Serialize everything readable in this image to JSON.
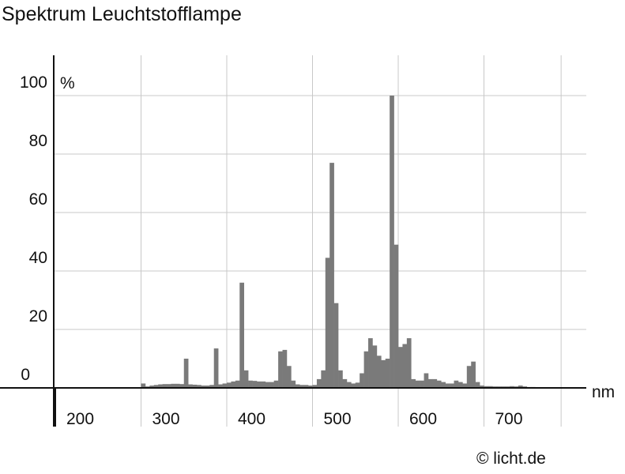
{
  "chart_data": {
    "type": "bar",
    "title": "Spektrum Leuchtstofflampe",
    "xlabel": "nm",
    "ylabel": "%",
    "xlim": [
      200,
      790
    ],
    "ylim": [
      0,
      100
    ],
    "x_ticks": [
      "200",
      "300",
      "400",
      "500",
      "600",
      "700"
    ],
    "y_ticks": [
      "0",
      "20",
      "40",
      "60",
      "80",
      "100"
    ],
    "bin_width_nm": 5,
    "grid": true,
    "series": [
      {
        "x": [
          300,
          305,
          310,
          315,
          320,
          325,
          330,
          335,
          340,
          345,
          350,
          355,
          360,
          365,
          370,
          375,
          380,
          385,
          390,
          395,
          400,
          405,
          410,
          415,
          420,
          425,
          430,
          435,
          440,
          445,
          450,
          455,
          460,
          465,
          470,
          475,
          480,
          485,
          490,
          495,
          500,
          505,
          510,
          515,
          520,
          525,
          530,
          535,
          540,
          545,
          550,
          555,
          560,
          565,
          570,
          575,
          580,
          585,
          590,
          595,
          600,
          605,
          610,
          615,
          620,
          625,
          630,
          635,
          640,
          645,
          650,
          655,
          660,
          665,
          670,
          675,
          680,
          685,
          690,
          695,
          700,
          705,
          710,
          715,
          720,
          725,
          730,
          735,
          740,
          745,
          750,
          755
        ],
        "values": [
          1.5,
          0.5,
          0.8,
          1.0,
          1.2,
          1.3,
          1.3,
          1.4,
          1.4,
          1.3,
          10.0,
          1.2,
          1.1,
          1.0,
          0.8,
          0.8,
          1.0,
          13.5,
          1.2,
          1.5,
          1.8,
          2.2,
          2.5,
          36.0,
          6.0,
          2.5,
          2.4,
          2.2,
          2.2,
          2.0,
          2.0,
          2.5,
          12.5,
          13.0,
          7.5,
          2.5,
          1.2,
          1.0,
          1.0,
          0.8,
          1.0,
          3.0,
          6.0,
          44.5,
          77.0,
          29.0,
          6.0,
          3.0,
          2.0,
          1.5,
          1.8,
          5.0,
          12.5,
          17.0,
          14.5,
          11.0,
          9.5,
          10.0,
          100.0,
          49.0,
          14.0,
          15.0,
          17.0,
          3.0,
          2.5,
          2.5,
          5.0,
          3.0,
          3.0,
          2.5,
          2.0,
          1.5,
          1.5,
          2.5,
          2.0,
          1.5,
          7.5,
          9.0,
          2.0,
          0.8,
          0.6,
          0.6,
          0.5,
          0.5,
          0.5,
          0.5,
          0.6,
          0.5,
          0.8,
          0.5,
          0.3,
          0.3
        ]
      }
    ],
    "credit": "© licht.de",
    "colors": {
      "bars": "#7a7a7a",
      "grid": "#c8c8c8",
      "axis": "#111111"
    }
  }
}
